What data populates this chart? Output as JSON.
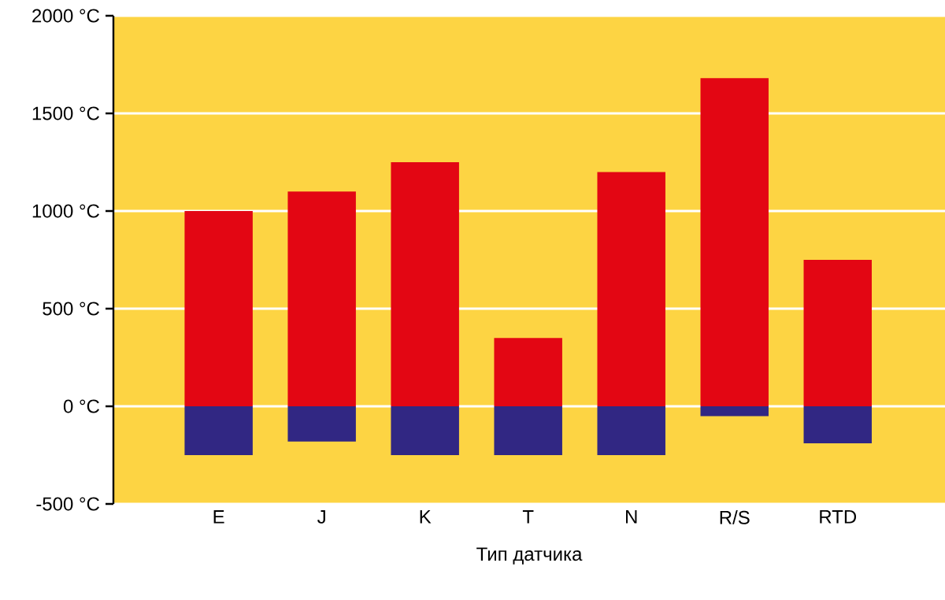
{
  "chart_data": {
    "type": "bar",
    "xlabel": "Тип датчика",
    "categories": [
      "E",
      "J",
      "K",
      "T",
      "N",
      "R/S",
      "RTD"
    ],
    "stacked": true,
    "grid": "y",
    "series": [
      {
        "color": "#e30613",
        "values": [
          1000,
          1100,
          1250,
          350,
          1200,
          1680,
          750
        ]
      },
      {
        "color": "#312783",
        "values": [
          -250,
          -180,
          -250,
          -250,
          -250,
          -50,
          -190
        ]
      }
    ],
    "ylim": [
      -500,
      2000
    ],
    "yticks": [
      {
        "value": -500,
        "label": "-500 °C"
      },
      {
        "value": 0,
        "label": "0 °C"
      },
      {
        "value": 500,
        "label": "500 °C"
      },
      {
        "value": 1000,
        "label": "1000 °C"
      },
      {
        "value": 1500,
        "label": "1500 °C"
      },
      {
        "value": 2000,
        "label": "2000 °C"
      }
    ]
  }
}
